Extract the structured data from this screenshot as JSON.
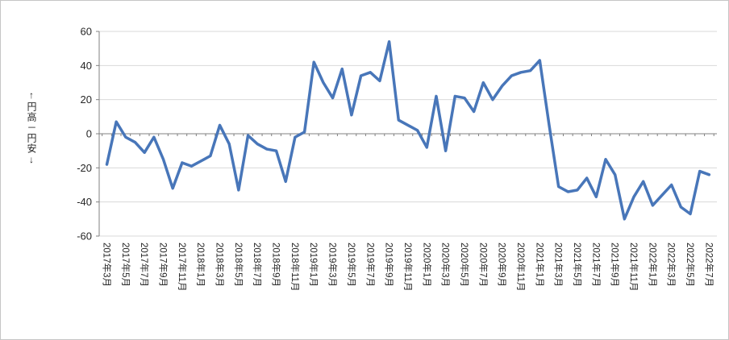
{
  "chart_data": {
    "type": "line",
    "title": "",
    "xlabel": "",
    "ylabel": "↑円高－円安↓",
    "ylim": [
      -60,
      60
    ],
    "y_ticks": [
      60,
      40,
      20,
      0,
      -20,
      -40,
      -60
    ],
    "grid": "horizontal",
    "legend": "none",
    "line_color": "#4876b9",
    "gridline_color": "#d9d9d9",
    "axis_color": "#808080",
    "label_color": "#262626",
    "x_tick_labels": [
      "2017年3月",
      "2017年5月",
      "2017年7月",
      "2017年9月",
      "2017年11月",
      "2018年1月",
      "2018年3月",
      "2018年5月",
      "2018年7月",
      "2018年9月",
      "2018年11月",
      "2019年1月",
      "2019年3月",
      "2019年5月",
      "2019年7月",
      "2019年9月",
      "2019年11月",
      "2020年1月",
      "2020年3月",
      "2020年5月",
      "2020年7月",
      "2020年9月",
      "2020年11月",
      "2021年1月",
      "2021年3月",
      "2021年5月",
      "2021年7月",
      "2021年9月",
      "2021年11月",
      "2022年1月",
      "2022年3月",
      "2022年5月",
      "2022年7月"
    ],
    "x": [
      "2017年3月",
      "2017年4月",
      "2017年5月",
      "2017年6月",
      "2017年7月",
      "2017年8月",
      "2017年9月",
      "2017年10月",
      "2017年11月",
      "2017年12月",
      "2018年1月",
      "2018年2月",
      "2018年3月",
      "2018年4月",
      "2018年5月",
      "2018年6月",
      "2018年7月",
      "2018年8月",
      "2018年9月",
      "2018年10月",
      "2018年11月",
      "2018年12月",
      "2019年1月",
      "2019年2月",
      "2019年3月",
      "2019年4月",
      "2019年5月",
      "2019年6月",
      "2019年7月",
      "2019年8月",
      "2019年9月",
      "2019年10月",
      "2019年11月",
      "2019年12月",
      "2020年1月",
      "2020年2月",
      "2020年3月",
      "2020年4月",
      "2020年5月",
      "2020年6月",
      "2020年7月",
      "2020年8月",
      "2020年9月",
      "2020年10月",
      "2020年11月",
      "2020年12月",
      "2021年1月",
      "2021年2月",
      "2021年3月",
      "2021年4月",
      "2021年5月",
      "2021年6月",
      "2021年7月",
      "2021年8月",
      "2021年9月",
      "2021年10月",
      "2021年11月",
      "2021年12月",
      "2022年1月",
      "2022年2月",
      "2022年3月",
      "2022年4月",
      "2022年5月",
      "2022年6月",
      "2022年7月"
    ],
    "values": [
      -18,
      7,
      -2,
      -5,
      -11,
      -2,
      -15,
      -32,
      -17,
      -19,
      -16,
      -13,
      5,
      -6,
      -33,
      -1,
      -6,
      -9,
      -10,
      -28,
      -2,
      1,
      42,
      30,
      21,
      38,
      11,
      34,
      36,
      31,
      54,
      8,
      5,
      2,
      -8,
      22,
      -10,
      22,
      21,
      13,
      30,
      20,
      28,
      34,
      36,
      37,
      43,
      5,
      -31,
      -34,
      -33,
      -26,
      -37,
      -15,
      -24,
      -50,
      -37,
      -28,
      -42,
      -36,
      -30,
      -43,
      -47,
      -22,
      -24
    ]
  }
}
